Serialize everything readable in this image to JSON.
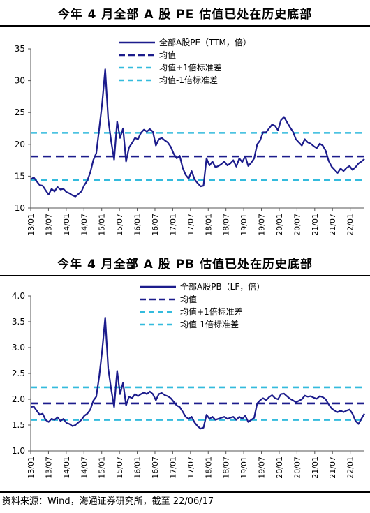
{
  "source": "资料来源：Wind，海通证券研究所，截至 22/06/17",
  "colors": {
    "series": "#1c1c8c",
    "mean": "#1c1c8c",
    "band": "#33bbdd"
  },
  "chart_data": [
    {
      "type": "line",
      "title": "今年 4 月全部 A 股 PE 估值已处在历史底部",
      "x_ticks": [
        "13/01",
        "13/07",
        "14/01",
        "14/07",
        "15/01",
        "15/07",
        "16/01",
        "16/07",
        "17/01",
        "17/07",
        "18/01",
        "18/07",
        "19/01",
        "19/07",
        "20/01",
        "20/07",
        "21/01",
        "21/07",
        "22/01"
      ],
      "ylim": [
        10,
        35
      ],
      "y_ticks": [
        "10",
        "15",
        "20",
        "25",
        "30",
        "35"
      ],
      "legend": [
        "全部A股PE（TTM，倍）",
        "均值",
        "均值+1倍标准差",
        "均值-1倍标准差"
      ],
      "mean": 18.1,
      "mean_plus_1sd": 21.8,
      "mean_minus_1sd": 14.4,
      "series": [
        {
          "name": "全部A股PE（TTM，倍）",
          "x": [
            0,
            1,
            2,
            3,
            4,
            5,
            6,
            7,
            8,
            9,
            10,
            11,
            12,
            13,
            14,
            15,
            16,
            17,
            18,
            19,
            20,
            21,
            22,
            23,
            24,
            25,
            26,
            27,
            28,
            29,
            30,
            31,
            32,
            33,
            34,
            35,
            36,
            37,
            38,
            39,
            40,
            41,
            42,
            43,
            44,
            45,
            46,
            47,
            48,
            49,
            50,
            51,
            52,
            53,
            54,
            55,
            56,
            57,
            58,
            59,
            60,
            61,
            62,
            63,
            64,
            65,
            66,
            67,
            68,
            69,
            70,
            71,
            72,
            73,
            74,
            75,
            76,
            77,
            78,
            79,
            80,
            81,
            82,
            83,
            84,
            85,
            86,
            87,
            88,
            89,
            90,
            91,
            92,
            93,
            94,
            95,
            96,
            97,
            98,
            99,
            100,
            101,
            102,
            103,
            104,
            105,
            106,
            107,
            108,
            109,
            110,
            111,
            112
          ],
          "values": [
            14.5,
            14.8,
            14.2,
            13.6,
            13.5,
            12.8,
            12.1,
            13.0,
            12.6,
            13.3,
            12.9,
            13.0,
            12.5,
            12.3,
            12.0,
            11.8,
            12.2,
            12.6,
            13.6,
            14.3,
            15.6,
            17.5,
            18.6,
            22.5,
            26.5,
            31.8,
            24.0,
            20.5,
            17.6,
            23.6,
            21.0,
            22.5,
            17.3,
            19.5,
            20.2,
            21.0,
            20.8,
            21.8,
            22.3,
            22.0,
            22.4,
            22.0,
            19.8,
            20.8,
            21.0,
            20.6,
            20.3,
            19.6,
            18.5,
            17.8,
            18.2,
            16.3,
            15.2,
            14.6,
            15.8,
            14.5,
            13.9,
            13.4,
            13.5,
            17.8,
            16.7,
            17.3,
            16.4,
            16.6,
            16.9,
            17.3,
            16.7,
            17.0,
            17.5,
            16.5,
            17.8,
            17.2,
            18.1,
            16.6,
            17.1,
            17.8,
            20.0,
            20.6,
            21.9,
            21.9,
            22.5,
            23.1,
            22.9,
            22.2,
            23.8,
            24.3,
            23.5,
            22.7,
            22.0,
            20.8,
            20.3,
            19.8,
            20.8,
            20.3,
            20.1,
            19.7,
            19.4,
            20.1,
            19.8,
            19.0,
            17.4,
            16.5,
            16.0,
            15.5,
            16.2,
            15.8,
            16.3,
            16.6,
            16.0,
            16.4,
            17.0,
            17.3,
            17.7
          ]
        }
      ]
    },
    {
      "type": "line",
      "title": "今年 4 月全部 A 股 PB 估值已处在历史底部",
      "x_ticks": [
        "13/01",
        "13/07",
        "14/01",
        "14/07",
        "15/01",
        "15/07",
        "16/01",
        "16/07",
        "17/01",
        "17/07",
        "18/01",
        "18/07",
        "19/01",
        "19/07",
        "20/01",
        "20/07",
        "21/01",
        "21/07",
        "22/01"
      ],
      "ylim": [
        1.0,
        4.0
      ],
      "y_ticks": [
        "1.0",
        "1.5",
        "2.0",
        "2.5",
        "3.0",
        "3.5",
        "4.0"
      ],
      "legend": [
        "全部A股PB（LF，倍）",
        "均值",
        "均值+1倍标准差",
        "均值-1倍标准差"
      ],
      "mean": 1.92,
      "mean_plus_1sd": 2.23,
      "mean_minus_1sd": 1.6,
      "series": [
        {
          "name": "全部A股PB（LF，倍）",
          "x": [
            0,
            1,
            2,
            3,
            4,
            5,
            6,
            7,
            8,
            9,
            10,
            11,
            12,
            13,
            14,
            15,
            16,
            17,
            18,
            19,
            20,
            21,
            22,
            23,
            24,
            25,
            26,
            27,
            28,
            29,
            30,
            31,
            32,
            33,
            34,
            35,
            36,
            37,
            38,
            39,
            40,
            41,
            42,
            43,
            44,
            45,
            46,
            47,
            48,
            49,
            50,
            51,
            52,
            53,
            54,
            55,
            56,
            57,
            58,
            59,
            60,
            61,
            62,
            63,
            64,
            65,
            66,
            67,
            68,
            69,
            70,
            71,
            72,
            73,
            74,
            75,
            76,
            77,
            78,
            79,
            80,
            81,
            82,
            83,
            84,
            85,
            86,
            87,
            88,
            89,
            90,
            91,
            92,
            93,
            94,
            95,
            96,
            97,
            98,
            99,
            100,
            101,
            102,
            103,
            104,
            105,
            106,
            107,
            108,
            109,
            110,
            111,
            112
          ],
          "values": [
            1.85,
            1.86,
            1.78,
            1.7,
            1.72,
            1.6,
            1.56,
            1.62,
            1.6,
            1.65,
            1.58,
            1.62,
            1.54,
            1.52,
            1.48,
            1.5,
            1.55,
            1.6,
            1.68,
            1.72,
            1.8,
            1.97,
            2.05,
            2.45,
            2.95,
            3.58,
            2.6,
            2.2,
            1.85,
            2.55,
            2.1,
            2.32,
            1.88,
            2.05,
            2.02,
            2.1,
            2.06,
            2.1,
            2.13,
            2.1,
            2.15,
            2.1,
            1.98,
            2.1,
            2.12,
            2.08,
            2.06,
            2.02,
            1.95,
            1.88,
            1.85,
            1.76,
            1.66,
            1.62,
            1.66,
            1.55,
            1.48,
            1.43,
            1.45,
            1.7,
            1.62,
            1.66,
            1.6,
            1.62,
            1.64,
            1.66,
            1.62,
            1.64,
            1.66,
            1.6,
            1.66,
            1.62,
            1.68,
            1.56,
            1.6,
            1.64,
            1.92,
            1.98,
            2.02,
            1.98,
            2.04,
            2.08,
            2.02,
            2.0,
            2.1,
            2.11,
            2.06,
            2.01,
            1.98,
            1.94,
            1.97,
            2.0,
            2.07,
            2.05,
            2.06,
            2.03,
            2.01,
            2.06,
            2.04,
            2.0,
            1.9,
            1.82,
            1.78,
            1.75,
            1.78,
            1.75,
            1.78,
            1.8,
            1.72,
            1.58,
            1.52,
            1.62,
            1.72
          ]
        }
      ]
    }
  ]
}
